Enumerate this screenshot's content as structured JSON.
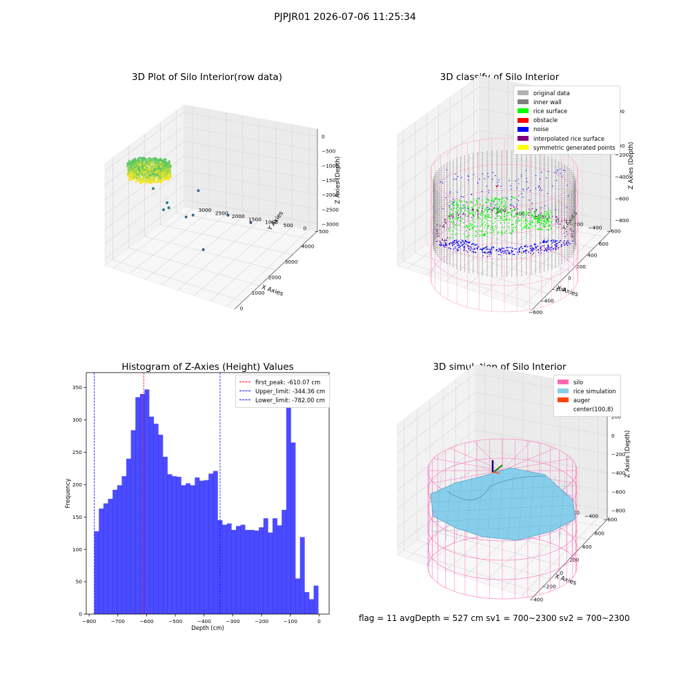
{
  "figure": {
    "suptitle": "PJPJR01 2026-07-06 11:25:34",
    "status_line": "flag = 11   avgDepth = 527 cm   sv1 = 700~2300   sv2 = 700~2300"
  },
  "chart_data": [
    {
      "type": "scatter",
      "title": "3D Plot of Silo Interior(row data)",
      "xlabel": "X Axies",
      "ylabel": "Y Axies",
      "zlabel": "Z Axies (Depth)",
      "xticks": [
        "0",
        "1000",
        "2000",
        "3000",
        "4000"
      ],
      "yticks": [
        "−500",
        "0",
        "500",
        "1000",
        "1500",
        "2000",
        "2500",
        "3000"
      ],
      "zticks": [
        "0",
        "−500",
        "−1000",
        "−1500",
        "−2000",
        "−2500",
        "−3000"
      ],
      "xlim": [
        -600,
        4000
      ],
      "ylim": [
        -600,
        3200
      ],
      "zlim": [
        -3400,
        200
      ],
      "colormap": "viridis",
      "cluster": {
        "description": "dense ring of points",
        "x_center": 300,
        "y_center": 2900,
        "z_range": [
          -500,
          -100
        ]
      },
      "points": [
        {
          "x": 1800,
          "y": 3000,
          "z": -1700
        },
        {
          "x": 1400,
          "y": 2500,
          "z": -2100
        },
        {
          "x": 1900,
          "y": 2600,
          "z": -2300
        },
        {
          "x": 2000,
          "y": 2700,
          "z": -2200
        },
        {
          "x": 2100,
          "y": 2200,
          "z": -2600
        },
        {
          "x": 2300,
          "y": 2100,
          "z": -2600
        },
        {
          "x": 1500,
          "y": 1400,
          "z": -3200
        },
        {
          "x": 3600,
          "y": 2600,
          "z": -2500
        },
        {
          "x": 3500,
          "y": 1700,
          "z": -3100
        },
        {
          "x": 3800,
          "y": 1200,
          "z": -3400
        }
      ],
      "grid": true
    },
    {
      "type": "scatter",
      "title": "3D classify of Silo Interior",
      "xlabel": "X Axies",
      "ylabel": "Y Axies",
      "zlabel": "Z Axies (Depth)",
      "xticks": [
        "−600",
        "−400",
        "−200",
        "0",
        "200",
        "400",
        "600"
      ],
      "yticks": [
        "−600",
        "−400",
        "−200",
        "0",
        "200",
        "400",
        "600"
      ],
      "zticks": [
        "200",
        "0",
        "−200",
        "−400",
        "−600",
        "−800"
      ],
      "xlim": [
        -650,
        650
      ],
      "ylim": [
        -650,
        650
      ],
      "zlim": [
        -950,
        380
      ],
      "legend": [
        {
          "label": "original data",
          "color": "#b3b3b3"
        },
        {
          "label": "inner wall",
          "color": "#808080"
        },
        {
          "label": "rice surface",
          "color": "#00ff00"
        },
        {
          "label": "obstacle",
          "color": "#ff0000"
        },
        {
          "label": "noise",
          "color": "#0000ff"
        },
        {
          "label": "interpolated rice surface",
          "color": "#800080"
        },
        {
          "label": "symmetric generated points",
          "color": "#ffff00"
        }
      ],
      "legend_position": "upper right",
      "legend_partial_tick": "00",
      "grid": true
    },
    {
      "type": "bar",
      "title": "Histogram of Z-Axies (Height) Values",
      "xlabel": "Depth (cm)",
      "ylabel": "Frequency",
      "xlim": [
        -810,
        35
      ],
      "ylim": [
        0,
        373
      ],
      "xticks": [
        "−800",
        "−700",
        "−600",
        "−500",
        "−400",
        "−300",
        "−200",
        "−100",
        "0"
      ],
      "yticks": [
        "0",
        "50",
        "100",
        "150",
        "200",
        "250",
        "300",
        "350"
      ],
      "bin_start": -782,
      "bin_width": 15.9,
      "values": [
        128,
        163,
        171,
        178,
        192,
        199,
        213,
        240,
        284,
        335,
        340,
        347,
        305,
        294,
        277,
        243,
        216,
        213,
        212,
        199,
        202,
        199,
        211,
        206,
        207,
        217,
        221,
        145,
        138,
        140,
        130,
        136,
        138,
        130,
        130,
        129,
        134,
        148,
        126,
        148,
        137,
        161,
        360,
        265,
        55,
        119,
        34,
        23,
        44
      ],
      "color": "#0000ff",
      "vlines": [
        {
          "label": "first_peak: -610.07 cm",
          "x": -610.07,
          "color": "#ff0000"
        },
        {
          "label": "Upper_limit: -344.36 cm",
          "x": -344.36,
          "color": "#0000ff"
        },
        {
          "label": "Lower_limit: -782.00 cm",
          "x": -782.0,
          "color": "#0000ff"
        }
      ],
      "legend_position": "upper right"
    },
    {
      "type": "area",
      "title": "3D simulation of Silo Interior",
      "xlabel": "X Axies",
      "ylabel": "Y Axies",
      "zlabel": "Z Axies (Depth)",
      "xticks": [
        "−400",
        "−200",
        "0",
        "200",
        "400",
        "600"
      ],
      "yticks": [
        "−600",
        "−400",
        "−200",
        "0",
        "200",
        "400",
        "600"
      ],
      "zticks": [
        "400",
        "200",
        "0",
        "−200",
        "−400",
        "−600",
        "−800"
      ],
      "xlim": [
        -650,
        650
      ],
      "ylim": [
        -650,
        650
      ],
      "zlim": [
        -950,
        480
      ],
      "legend": [
        {
          "label": "silo",
          "color": "#ff69b4"
        },
        {
          "label": "rice simulation",
          "color": "#87ceeb"
        },
        {
          "label": "auger",
          "color": "#ff4500"
        },
        {
          "label": "center(100,8)",
          "color": ""
        }
      ],
      "legend_position": "upper right",
      "grid": true
    }
  ]
}
